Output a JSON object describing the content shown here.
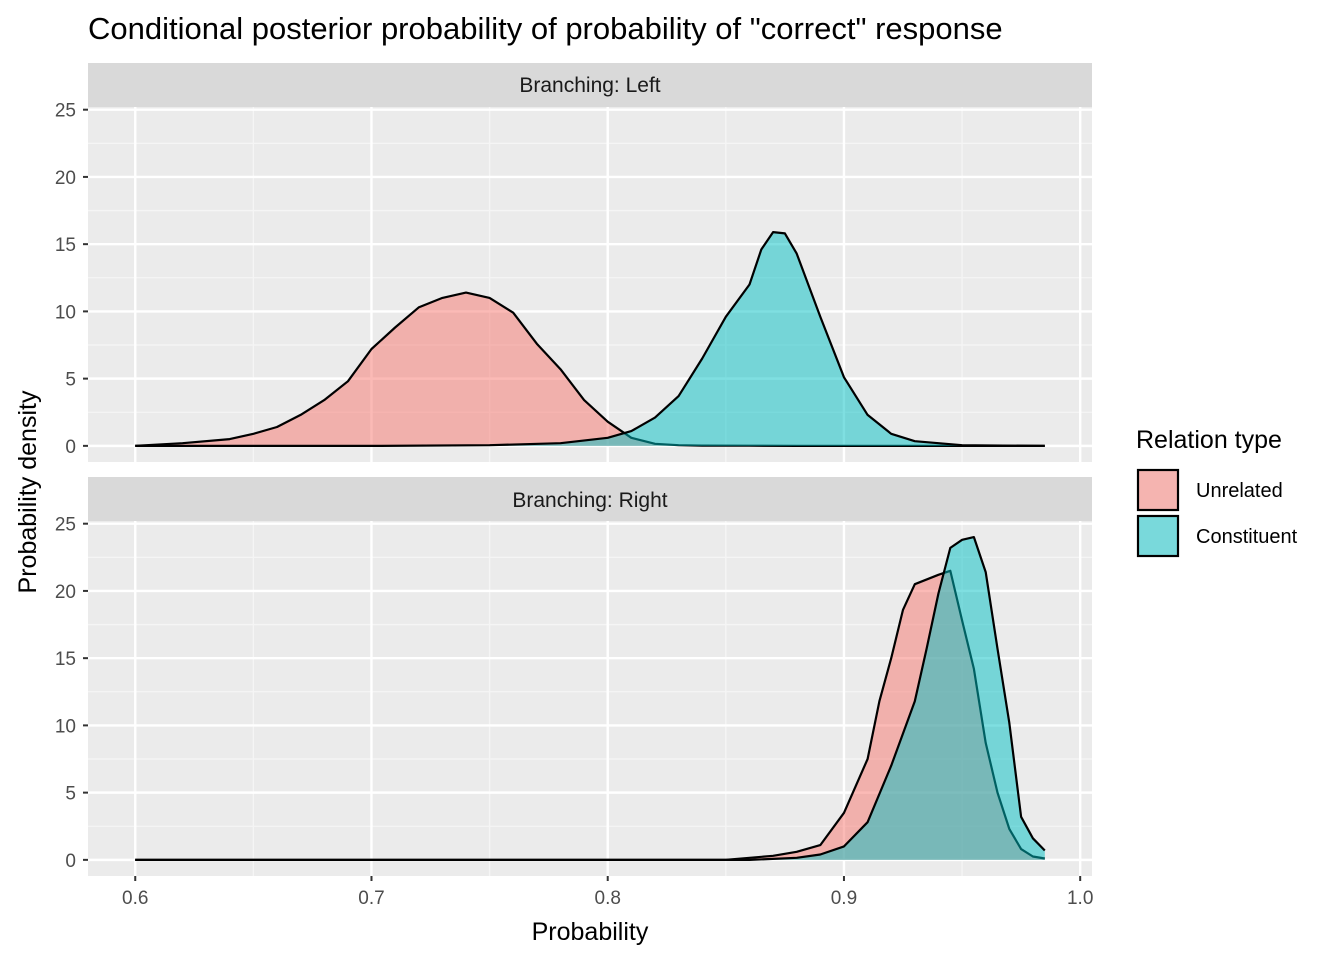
{
  "chart_data": {
    "type": "area",
    "title": "Conditional posterior probability of probability of \"correct\" response",
    "xlabel": "Probability",
    "ylabel": "Probability density",
    "xlim": [
      0.58,
      1.005
    ],
    "ylim": [
      -1.2,
      25.2
    ],
    "x_ticks": [
      0.6,
      0.7,
      0.8,
      0.9,
      1.0
    ],
    "x_tick_labels": [
      "0.6",
      "0.7",
      "0.8",
      "0.9",
      "1.0"
    ],
    "y_ticks": [
      0,
      5,
      10,
      15,
      20,
      25
    ],
    "y_tick_labels": [
      "0",
      "5",
      "10",
      "15",
      "20",
      "25"
    ],
    "grid": true,
    "legend": {
      "title": "Relation type",
      "position": "right",
      "entries": [
        {
          "label": "Unrelated",
          "color": "#F8766D"
        },
        {
          "label": "Constituent",
          "color": "#00BFC4"
        }
      ]
    },
    "facets": [
      {
        "label": "Branching: Left",
        "series": [
          {
            "name": "Unrelated",
            "color": "#F8766D",
            "x": [
              0.6,
              0.62,
              0.64,
              0.65,
              0.66,
              0.67,
              0.68,
              0.69,
              0.7,
              0.71,
              0.72,
              0.73,
              0.74,
              0.75,
              0.76,
              0.77,
              0.78,
              0.79,
              0.8,
              0.81,
              0.82,
              0.83,
              0.84,
              0.86,
              0.88,
              0.9,
              0.95,
              0.985
            ],
            "y": [
              0,
              0.2,
              0.5,
              0.9,
              1.4,
              2.3,
              3.4,
              4.8,
              7.2,
              8.8,
              10.3,
              11.0,
              11.4,
              11.0,
              9.9,
              7.6,
              5.7,
              3.4,
              1.8,
              0.6,
              0.15,
              0.05,
              0.02,
              0.01,
              0,
              0,
              0,
              0
            ]
          },
          {
            "name": "Constituent",
            "color": "#00BFC4",
            "x": [
              0.6,
              0.7,
              0.75,
              0.78,
              0.8,
              0.81,
              0.82,
              0.83,
              0.84,
              0.85,
              0.86,
              0.865,
              0.87,
              0.875,
              0.88,
              0.89,
              0.9,
              0.91,
              0.92,
              0.93,
              0.95,
              0.985
            ],
            "y": [
              0,
              0,
              0.05,
              0.2,
              0.6,
              1.1,
              2.1,
              3.7,
              6.5,
              9.6,
              12.0,
              14.6,
              15.9,
              15.8,
              14.3,
              9.6,
              5.1,
              2.3,
              0.9,
              0.35,
              0.05,
              0
            ]
          }
        ]
      },
      {
        "label": "Branching: Right",
        "series": [
          {
            "name": "Unrelated",
            "color": "#F8766D",
            "x": [
              0.6,
              0.85,
              0.87,
              0.88,
              0.89,
              0.9,
              0.91,
              0.915,
              0.92,
              0.925,
              0.93,
              0.94,
              0.945,
              0.95,
              0.955,
              0.96,
              0.965,
              0.97,
              0.975,
              0.98,
              0.985
            ],
            "y": [
              0,
              0,
              0.3,
              0.6,
              1.1,
              3.5,
              7.5,
              11.8,
              15.0,
              18.6,
              20.5,
              21.2,
              21.5,
              17.8,
              14.2,
              8.7,
              5.0,
              2.3,
              0.8,
              0.25,
              0.1
            ]
          },
          {
            "name": "Constituent",
            "color": "#00BFC4",
            "x": [
              0.6,
              0.86,
              0.88,
              0.89,
              0.9,
              0.91,
              0.92,
              0.93,
              0.935,
              0.94,
              0.945,
              0.95,
              0.955,
              0.96,
              0.965,
              0.97,
              0.975,
              0.98,
              0.985
            ],
            "y": [
              0,
              0,
              0.15,
              0.4,
              1.0,
              2.8,
              7.0,
              11.8,
              15.7,
              19.8,
              23.2,
              23.8,
              24.0,
              21.4,
              15.7,
              10.2,
              3.2,
              1.6,
              0.7
            ]
          }
        ]
      }
    ]
  }
}
